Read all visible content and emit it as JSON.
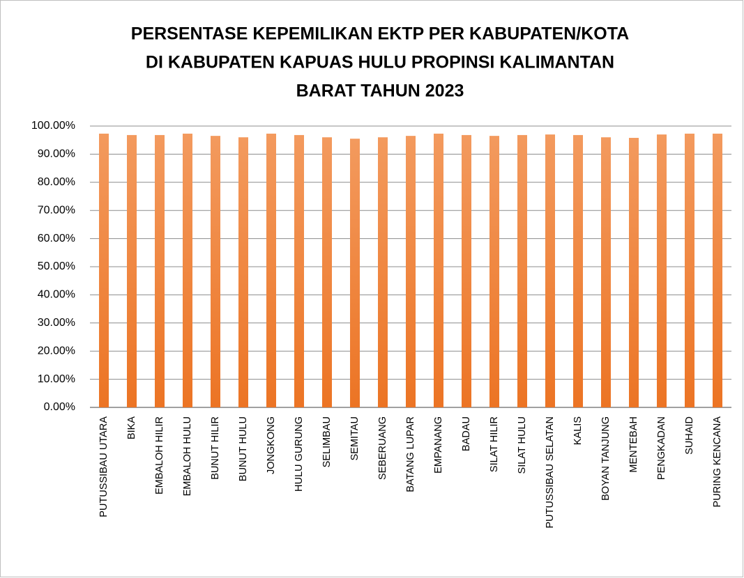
{
  "chart_data": {
    "type": "bar",
    "title": [
      "PERSENTASE KEPEMILIKAN EKTP PER KABUPATEN/KOTA",
      "DI KABUPATEN KAPUAS HULU PROPINSI KALIMANTAN",
      "BARAT TAHUN 2023"
    ],
    "categories": [
      "PUTUSSIBAU UTARA",
      "BIKA",
      "EMBALOH HILIR",
      "EMBALOH HULU",
      "BUNUT HILIR",
      "BUNUT HULU",
      "JONGKONG",
      "HULU GURUNG",
      "SELIMBAU",
      "SEMITAU",
      "SEBERUANG",
      "BATANG LUPAR",
      "EMPANANG",
      "BADAU",
      "SILAT HILIR",
      "SILAT HULU",
      "PUTUSSIBAU SELATAN",
      "KALIS",
      "BOYAN TANJUNG",
      "MENTEBAH",
      "PENGKADAN",
      "SUHAID",
      "PURING KENCANA"
    ],
    "values": [
      97.3,
      96.8,
      96.8,
      97.3,
      96.5,
      96.0,
      97.3,
      96.8,
      96.0,
      95.5,
      96.0,
      96.5,
      97.3,
      96.8,
      96.5,
      96.8,
      97.0,
      96.8,
      96.0,
      95.8,
      97.0,
      97.3,
      97.3
    ],
    "color": "#ed7d31",
    "ylim": [
      0,
      100
    ],
    "yticks": [
      {
        "value": 0,
        "label": "0.00%"
      },
      {
        "value": 10,
        "label": "10.00%"
      },
      {
        "value": 20,
        "label": "20.00%"
      },
      {
        "value": 30,
        "label": "30.00%"
      },
      {
        "value": 40,
        "label": "40.00%"
      },
      {
        "value": 50,
        "label": "50.00%"
      },
      {
        "value": 60,
        "label": "60.00%"
      },
      {
        "value": 70,
        "label": "70.00%"
      },
      {
        "value": 80,
        "label": "80.00%"
      },
      {
        "value": 90,
        "label": "90.00%"
      },
      {
        "value": 100,
        "label": "100.00%"
      }
    ],
    "grid": true
  }
}
